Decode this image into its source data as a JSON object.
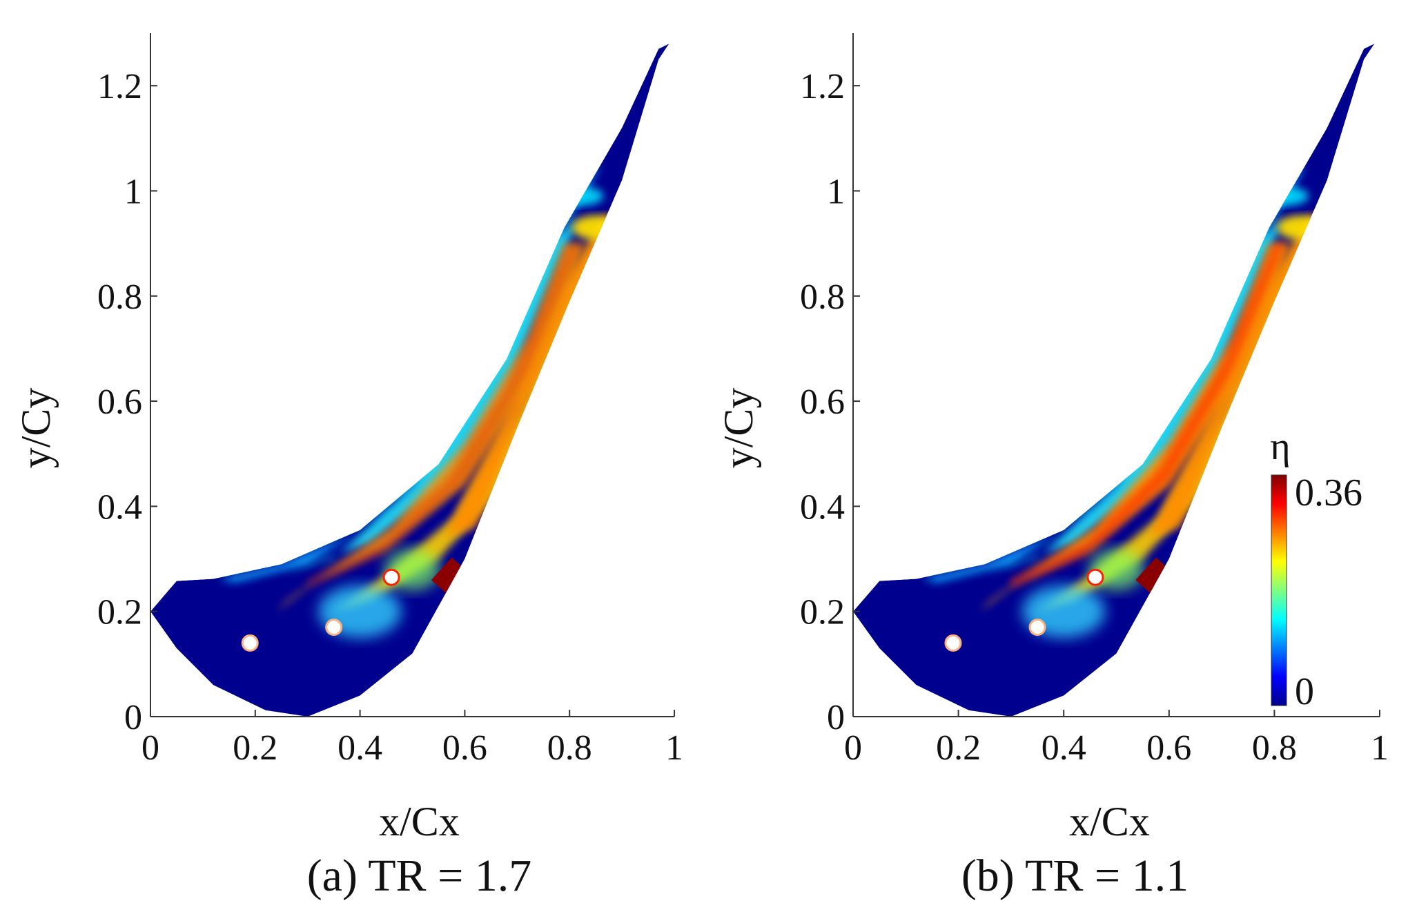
{
  "chart_data": [
    {
      "type": "heatmap",
      "panel": "a",
      "caption": "(a)   TR = 1.7",
      "xlabel": "x/Cx",
      "ylabel": "y/Cy",
      "xlim": [
        0,
        1
      ],
      "ylim": [
        0,
        1.3
      ],
      "xticks": [
        "0",
        "0.2",
        "0.4",
        "0.6",
        "0.8",
        "1"
      ],
      "yticks": [
        "0",
        "0.2",
        "0.4",
        "0.6",
        "0.8",
        "1",
        "1.2"
      ],
      "holes": [
        {
          "x": 0.19,
          "y": 0.14
        },
        {
          "x": 0.35,
          "y": 0.17
        },
        {
          "x": 0.46,
          "y": 0.265
        }
      ],
      "slot": {
        "x": 0.585,
        "y": 0.255
      },
      "variable": "η",
      "clim": [
        0,
        0.36
      ]
    },
    {
      "type": "heatmap",
      "panel": "b",
      "caption": "(b)   TR = 1.1",
      "xlabel": "x/Cx",
      "ylabel": "y/Cy",
      "xlim": [
        0,
        1
      ],
      "ylim": [
        0,
        1.3
      ],
      "xticks": [
        "0",
        "0.2",
        "0.4",
        "0.6",
        "0.8",
        "1"
      ],
      "yticks": [
        "0",
        "0.2",
        "0.4",
        "0.6",
        "0.8",
        "1",
        "1.2"
      ],
      "holes": [
        {
          "x": 0.19,
          "y": 0.14
        },
        {
          "x": 0.35,
          "y": 0.17
        },
        {
          "x": 0.46,
          "y": 0.265
        }
      ],
      "slot": {
        "x": 0.585,
        "y": 0.255
      },
      "variable": "η",
      "clim": [
        0,
        0.36
      ]
    }
  ],
  "colorbar": {
    "symbol": "η",
    "min_label": "0",
    "max_label": "0.36",
    "colors": [
      "#00008f",
      "#0000ff",
      "#0080ff",
      "#00ffff",
      "#80ff80",
      "#ffff00",
      "#ff8000",
      "#ff0000",
      "#800000"
    ]
  }
}
